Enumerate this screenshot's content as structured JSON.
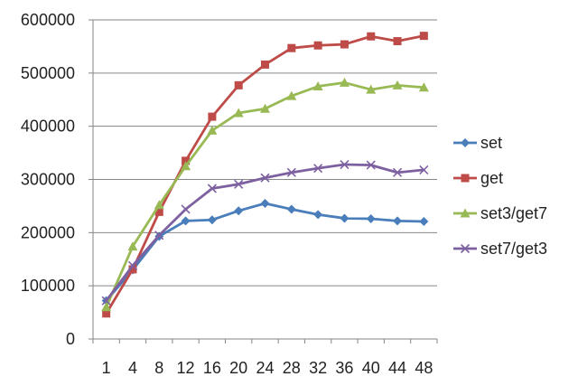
{
  "chart_data": {
    "type": "line",
    "categories": [
      "1",
      "4",
      "8",
      "12",
      "16",
      "20",
      "24",
      "28",
      "32",
      "36",
      "40",
      "44",
      "48"
    ],
    "ylim": [
      0,
      600000
    ],
    "yticks": [
      0,
      100000,
      200000,
      300000,
      400000,
      500000,
      600000
    ],
    "ytick_labels": [
      "0",
      "100000",
      "200000",
      "300000",
      "400000",
      "500000",
      "600000"
    ],
    "grid": "horizontal",
    "legend_position": "right",
    "series": [
      {
        "name": "set",
        "color": "#4a7ebb",
        "marker": "diamond",
        "values": [
          72000,
          130000,
          193000,
          222000,
          224000,
          241000,
          255000,
          244000,
          234000,
          227000,
          226000,
          222000,
          221000
        ]
      },
      {
        "name": "get",
        "color": "#be4b48",
        "marker": "square",
        "values": [
          48000,
          131000,
          239000,
          335000,
          418000,
          477000,
          516000,
          547000,
          552000,
          554000,
          569000,
          560000,
          570000
        ]
      },
      {
        "name": "set3/get7",
        "color": "#98b954",
        "marker": "triangle",
        "values": [
          60000,
          174000,
          252000,
          325000,
          392000,
          425000,
          433000,
          457000,
          475000,
          482000,
          469000,
          477000,
          473000
        ]
      },
      {
        "name": "set7/get3",
        "color": "#7d60a0",
        "marker": "x",
        "values": [
          72000,
          138000,
          195000,
          244000,
          283000,
          291000,
          303000,
          313000,
          321000,
          328000,
          327000,
          313000,
          318000
        ]
      }
    ]
  }
}
